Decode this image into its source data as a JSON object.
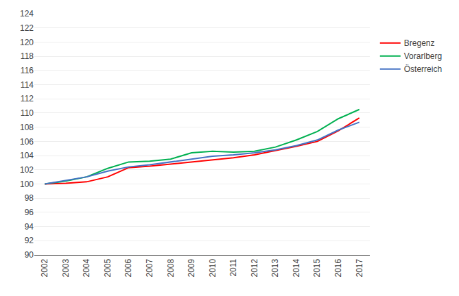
{
  "chart_data": {
    "type": "line",
    "x": [
      2002,
      2003,
      2004,
      2005,
      2006,
      2007,
      2008,
      2009,
      2010,
      2011,
      2012,
      2013,
      2014,
      2015,
      2016,
      2017
    ],
    "series": [
      {
        "name": "Bregenz",
        "color": "#ff0000",
        "values": [
          100.0,
          100.1,
          100.3,
          101.0,
          102.3,
          102.5,
          102.8,
          103.1,
          103.4,
          103.7,
          104.1,
          104.7,
          105.3,
          106.0,
          107.5,
          109.3
        ]
      },
      {
        "name": "Vorarlberg",
        "color": "#00b050",
        "values": [
          100.0,
          100.4,
          101.0,
          102.2,
          103.1,
          103.2,
          103.5,
          104.4,
          104.6,
          104.5,
          104.6,
          105.2,
          106.2,
          107.4,
          109.2,
          110.5
        ]
      },
      {
        "name": "Österreich",
        "color": "#4472c4",
        "values": [
          100.0,
          100.5,
          101.0,
          101.8,
          102.4,
          102.7,
          103.1,
          103.5,
          103.9,
          104.1,
          104.4,
          104.8,
          105.4,
          106.2,
          107.6,
          108.7
        ]
      }
    ],
    "xlim": [
      2001.5,
      2017.5
    ],
    "xticks": [
      2002,
      2003,
      2004,
      2005,
      2006,
      2007,
      2008,
      2009,
      2010,
      2011,
      2012,
      2013,
      2014,
      2015,
      2016,
      2017
    ],
    "ylim": [
      90,
      124
    ],
    "yticks": [
      90,
      92,
      94,
      96,
      98,
      100,
      102,
      104,
      106,
      108,
      110,
      112,
      114,
      116,
      118,
      120,
      122,
      124
    ],
    "grid": true,
    "legend": "right"
  }
}
